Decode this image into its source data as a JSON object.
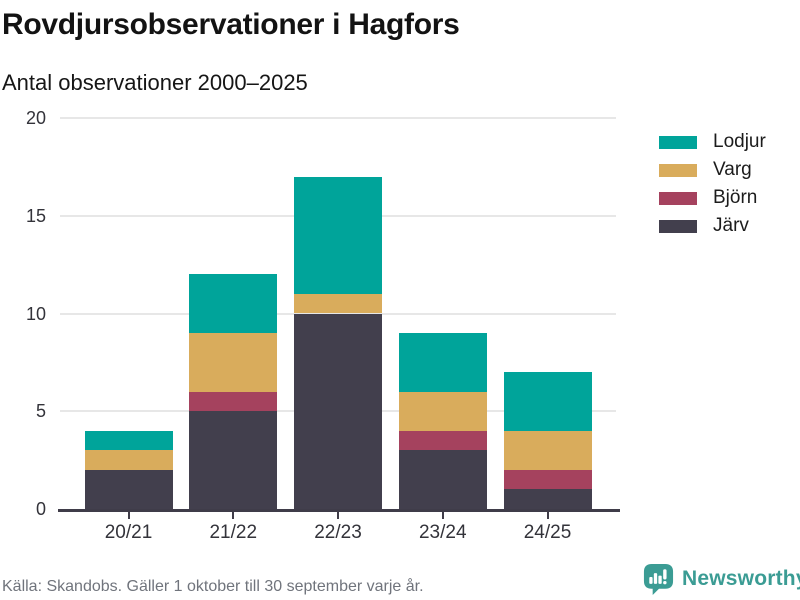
{
  "header": {
    "title": "Rovdjursobservationer i Hagfors",
    "subtitle": "Antal observationer 2000–2025"
  },
  "chart_data": {
    "type": "bar",
    "stacked": true,
    "title": "Rovdjursobservationer i Hagfors",
    "subtitle": "Antal observationer 2000–2025",
    "categories": [
      "20/21",
      "21/22",
      "22/23",
      "23/24",
      "24/25"
    ],
    "series": [
      {
        "name": "Järv",
        "color": "#423f4d",
        "values": [
          2,
          5,
          10,
          3,
          1
        ]
      },
      {
        "name": "Björn",
        "color": "#a5425e",
        "values": [
          0,
          1,
          0,
          1,
          1
        ]
      },
      {
        "name": "Varg",
        "color": "#d9ac5c",
        "values": [
          1,
          3,
          1,
          2,
          2
        ]
      },
      {
        "name": "Lodjur",
        "color": "#00a49a",
        "values": [
          1,
          3,
          6,
          3,
          3
        ]
      }
    ],
    "totals": [
      4,
      12,
      17,
      9,
      7
    ],
    "xlabel": "",
    "ylabel": "Antal observationer",
    "ylim": [
      0,
      20
    ],
    "yticks": [
      0,
      5,
      10,
      15,
      20
    ],
    "grid": true,
    "legend_position": "right"
  },
  "legend": {
    "items": [
      {
        "label": "Lodjur",
        "color": "#00a49a"
      },
      {
        "label": "Varg",
        "color": "#d9ac5c"
      },
      {
        "label": "Björn",
        "color": "#a5425e"
      },
      {
        "label": "Järv",
        "color": "#423f4d"
      }
    ]
  },
  "footer": {
    "source": "Källa: Skandobs. Gäller 1 oktober till 30 september varje år."
  },
  "branding": {
    "name": "Newsworthy",
    "color": "#3b9c94"
  }
}
